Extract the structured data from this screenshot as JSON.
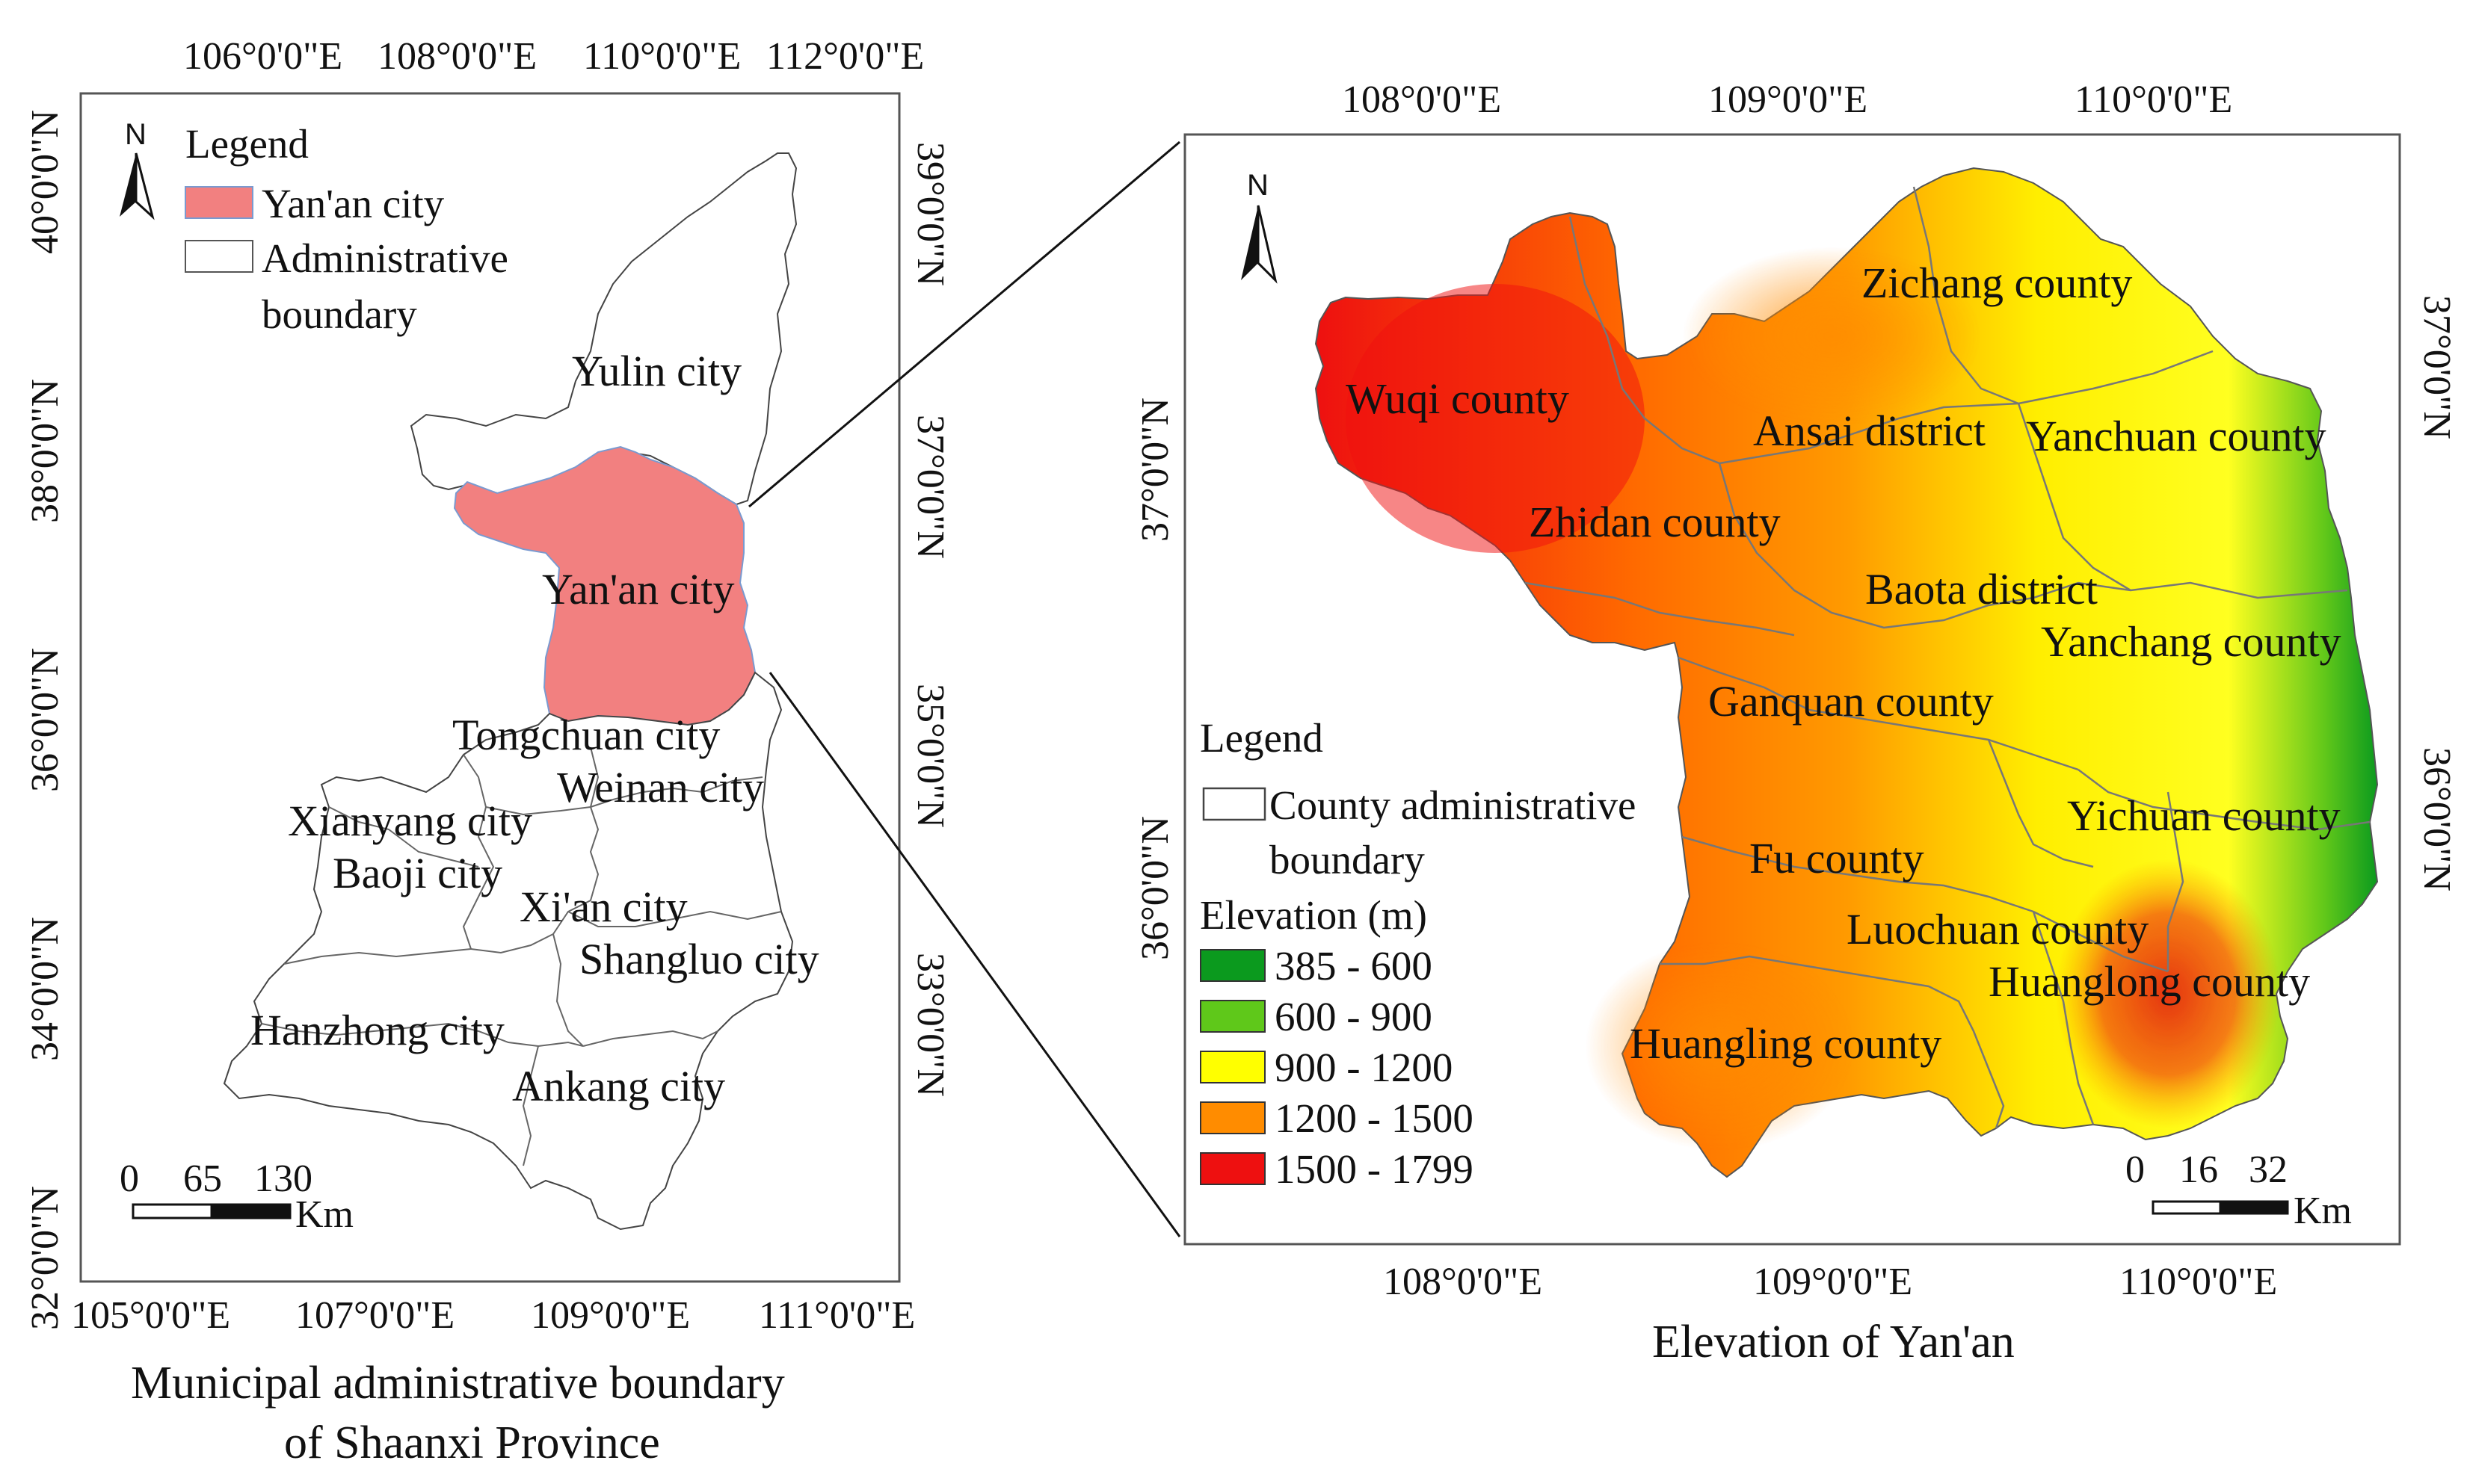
{
  "left_map": {
    "top_lon_ticks": [
      "106°0'0\"E",
      "108°0'0\"E",
      "110°0'0\"E",
      "112°0'0\"E"
    ],
    "bottom_lon_ticks": [
      "105°0'0\"E",
      "107°0'0\"E",
      "109°0'0\"E",
      "111°0'0\"E"
    ],
    "left_lat_ticks": [
      "40°0'0\"N",
      "38°0'0\"N",
      "36°0'0\"N",
      "34°0'0\"N",
      "32°0'0\"N"
    ],
    "right_lat_ticks": [
      "39°0'0\"N",
      "37°0'0\"N",
      "35°0'0\"N",
      "33°0'0\"N"
    ],
    "north": "N",
    "legend": {
      "title": "Legend",
      "items": [
        {
          "label": "Yan'an city",
          "color": "#f28080"
        },
        {
          "label": "Administrative",
          "label2": "boundary",
          "color": "#ffffff"
        }
      ]
    },
    "cities": [
      "Yulin city",
      "Yan'an city",
      "Tongchuan city",
      "Weinan city",
      "Xianyang city",
      "Baoji city",
      "Xi'an city",
      "Shangluo city",
      "Hanzhong city",
      "Ankang city"
    ],
    "scale": {
      "ticks": [
        "0",
        "65",
        "130"
      ],
      "unit": "Km"
    },
    "caption_line1": "Municipal administrative boundary",
    "caption_line2": "of Shaanxi Province"
  },
  "right_map": {
    "top_lon_ticks": [
      "108°0'0\"E",
      "109°0'0\"E",
      "110°0'0\"E"
    ],
    "bottom_lon_ticks": [
      "108°0'0\"E",
      "109°0'0\"E",
      "110°0'0\"E"
    ],
    "left_lat_ticks": [
      "37°0'0\"N",
      "36°0'0\"N"
    ],
    "right_lat_ticks": [
      "37°0'0\"N",
      "36°0'0\"N"
    ],
    "north": "N",
    "counties": [
      "Zichang county",
      "Wuqi county",
      "Ansai district",
      "Yanchuan county",
      "Zhidan county",
      "Baota district",
      "Yanchang county",
      "Ganquan county",
      "Yichuan county",
      "Fu county",
      "Luochuan county",
      "Huanglong county",
      "Huangling county"
    ],
    "legend": {
      "title": "Legend",
      "boundary_line1": "County administrative",
      "boundary_line2": "boundary",
      "elev_title": "Elevation (m)",
      "classes": [
        {
          "label": "385 - 600",
          "color": "#0b9a1e"
        },
        {
          "label": "600 - 900",
          "color": "#5fc81a"
        },
        {
          "label": "900 - 1200",
          "color": "#ffff00"
        },
        {
          "label": "1200 - 1500",
          "color": "#ff8c00"
        },
        {
          "label": "1500 - 1799",
          "color": "#ee1010"
        }
      ]
    },
    "scale": {
      "ticks": [
        "0",
        "16",
        "32"
      ],
      "unit": "Km"
    },
    "caption": "Elevation of Yan'an"
  }
}
